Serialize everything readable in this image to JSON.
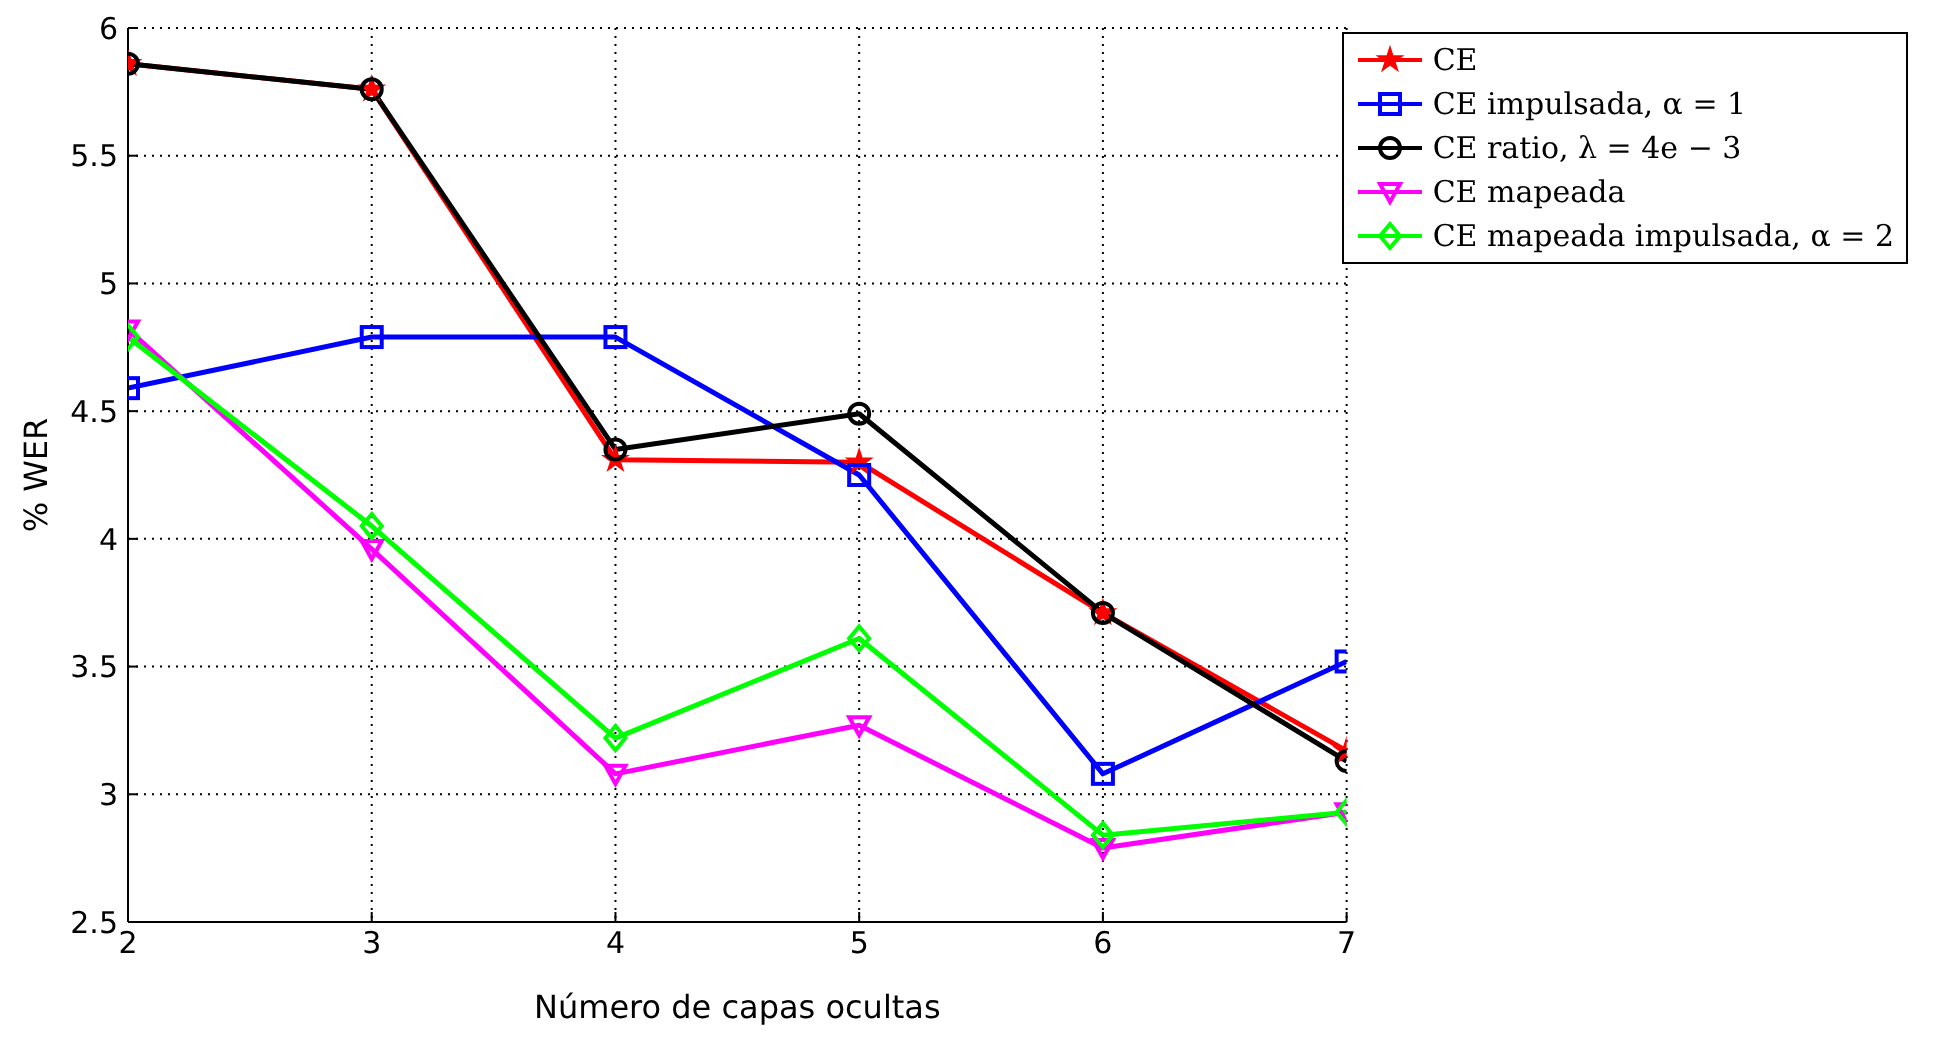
{
  "chart_data": {
    "type": "line",
    "xlabel": "Número de capas ocultas",
    "ylabel": "% WER",
    "x": [
      2,
      3,
      4,
      5,
      6,
      7
    ],
    "series": [
      {
        "name": "CE",
        "color": "#ff0000",
        "marker": "star",
        "values": [
          5.86,
          5.76,
          4.31,
          4.3,
          3.71,
          3.17
        ]
      },
      {
        "name": "CE impulsada, α = 1",
        "color": "#0000ff",
        "marker": "square",
        "values": [
          4.59,
          4.79,
          4.79,
          4.25,
          3.08,
          3.52
        ]
      },
      {
        "name": "CE ratio, λ = 4e − 3",
        "color": "#000000",
        "marker": "circle",
        "values": [
          5.86,
          5.76,
          4.35,
          4.49,
          3.71,
          3.13
        ]
      },
      {
        "name": "CE mapeada",
        "color": "#ff00ff",
        "marker": "triangle",
        "values": [
          4.82,
          3.96,
          3.08,
          3.27,
          2.79,
          2.93
        ]
      },
      {
        "name": "CE mapeada impulsada, α = 2",
        "color": "#00ff00",
        "marker": "diamond",
        "values": [
          4.79,
          4.05,
          3.22,
          3.61,
          2.84,
          2.93
        ]
      }
    ],
    "xlim": [
      2,
      7
    ],
    "xticks": [
      2,
      3,
      4,
      5,
      6,
      7
    ],
    "ylim": [
      2.5,
      6
    ],
    "yticks": [
      2.5,
      3,
      3.5,
      4,
      4.5,
      5,
      5.5,
      6
    ],
    "grid": true,
    "legend": "top right",
    "line_style": "solid"
  }
}
